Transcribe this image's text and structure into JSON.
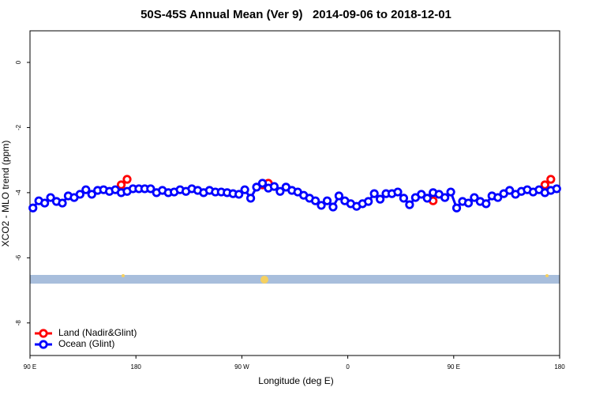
{
  "chart_data": {
    "type": "line",
    "title": "50S-45S Annual Mean (Ver 9)   2014-09-06 to 2018-12-01",
    "xlabel": "Longitude (deg E)",
    "ylabel": "XCO2 - MLO trend (ppm)",
    "xlim": [
      90,
      540
    ],
    "xticks": [
      {
        "value": 90,
        "label": "90 E"
      },
      {
        "value": 180,
        "label": "180"
      },
      {
        "value": 270,
        "label": "90 W"
      },
      {
        "value": 360,
        "label": "0"
      },
      {
        "value": 450,
        "label": "90 E"
      },
      {
        "value": 540,
        "label": "180"
      }
    ],
    "ylim": [
      -9,
      0.97
    ],
    "yticks": [
      0,
      -2,
      -4,
      -6,
      -8
    ],
    "legend": "bottom-left",
    "x": [
      92.5,
      97.5,
      102.5,
      107.5,
      112.5,
      117.5,
      122.5,
      127.5,
      132.5,
      137.5,
      142.5,
      147.5,
      152.5,
      157.5,
      162.5,
      167.5,
      172.5,
      177.5,
      182.5,
      187.5,
      192.5,
      197.5,
      202.5,
      207.5,
      212.5,
      217.5,
      222.5,
      227.5,
      232.5,
      237.5,
      242.5,
      247.5,
      252.5,
      257.5,
      262.5,
      267.5,
      272.5,
      277.5,
      282.5,
      287.5,
      292.5,
      297.5,
      302.5,
      307.5,
      312.5,
      317.5,
      322.5,
      327.5,
      332.5,
      337.5,
      342.5,
      347.5,
      352.5,
      357.5,
      362.5,
      367.5,
      372.5,
      377.5,
      382.5,
      387.5,
      392.5,
      397.5,
      402.5,
      407.5,
      412.5,
      417.5,
      422.5,
      427.5,
      432.5,
      437.5,
      442.5,
      447.5,
      452.5,
      457.5,
      462.5,
      467.5,
      472.5,
      477.5,
      482.5,
      487.5,
      492.5,
      497.5,
      502.5,
      507.5,
      512.5,
      517.5,
      522.5,
      527.5,
      532.5,
      537.5
    ],
    "series": [
      {
        "name": "Land (Nadir&Glint)",
        "color": "#ff0000",
        "values": [
          null,
          null,
          null,
          null,
          null,
          null,
          null,
          null,
          null,
          null,
          null,
          null,
          null,
          null,
          null,
          -3.76,
          -3.59,
          null,
          null,
          null,
          null,
          null,
          null,
          null,
          null,
          null,
          null,
          null,
          null,
          null,
          null,
          null,
          null,
          null,
          null,
          null,
          null,
          null,
          null,
          -3.76,
          -3.71,
          null,
          null,
          null,
          null,
          null,
          null,
          null,
          null,
          null,
          null,
          null,
          null,
          null,
          null,
          null,
          null,
          null,
          null,
          null,
          null,
          null,
          null,
          null,
          null,
          null,
          null,
          null,
          -4.25,
          null,
          null,
          null,
          null,
          null,
          null,
          null,
          null,
          null,
          null,
          null,
          null,
          null,
          null,
          null,
          null,
          null,
          null,
          -3.76,
          -3.59,
          null
        ]
      },
      {
        "name": "Ocean (Glint)",
        "color": "#0000ff",
        "values": [
          -4.47,
          -4.25,
          -4.32,
          -4.15,
          -4.27,
          -4.32,
          -4.1,
          -4.15,
          -4.05,
          -3.91,
          -4.05,
          -3.93,
          -3.91,
          -3.96,
          -3.91,
          -4.0,
          -3.96,
          -3.88,
          -3.88,
          -3.88,
          -3.88,
          -4.0,
          -3.93,
          -4.0,
          -3.98,
          -3.91,
          -3.96,
          -3.88,
          -3.93,
          -4.0,
          -3.93,
          -3.98,
          -3.98,
          -4.0,
          -4.03,
          -4.05,
          -3.91,
          -4.17,
          -3.83,
          -3.71,
          -3.86,
          -3.81,
          -3.96,
          -3.83,
          -3.93,
          -3.98,
          -4.08,
          -4.17,
          -4.25,
          -4.39,
          -4.25,
          -4.44,
          -4.1,
          -4.25,
          -4.34,
          -4.42,
          -4.34,
          -4.27,
          -4.03,
          -4.2,
          -4.03,
          -4.03,
          -3.98,
          -4.17,
          -4.37,
          -4.15,
          -4.05,
          -4.17,
          -4.0,
          -4.05,
          -4.15,
          -3.98,
          -4.47,
          -4.27,
          -4.32,
          -4.15,
          -4.27,
          -4.34,
          -4.1,
          -4.15,
          -4.03,
          -3.93,
          -4.05,
          -3.96,
          -3.91,
          -3.98,
          -3.91,
          -4.0,
          -3.93,
          -3.88
        ]
      }
    ]
  }
}
